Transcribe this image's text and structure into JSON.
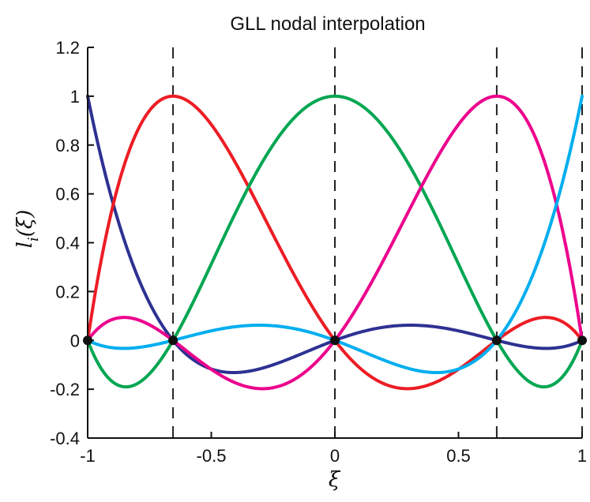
{
  "chart_data": {
    "type": "line",
    "title": "GLL nodal interpolation",
    "xlabel": "ξ",
    "ylabel_main": "l",
    "ylabel_sub": "i",
    "ylabel_rest": "(ξ)",
    "xlim": [
      -1,
      1
    ],
    "ylim": [
      -0.4,
      1.2
    ],
    "xticks": [
      -1,
      -0.5,
      0,
      0.5,
      1
    ],
    "xtick_labels": [
      "-1",
      "-0.5",
      "0",
      "0.5",
      "1"
    ],
    "yticks": [
      -0.4,
      -0.2,
      0,
      0.2,
      0.4,
      0.6,
      0.8,
      1,
      1.2
    ],
    "ytick_labels": [
      "-0.4",
      "-0.2",
      "0",
      "0.2",
      "0.4",
      "0.6",
      "0.8",
      "1",
      "1.2"
    ],
    "grid": false,
    "nodes": [
      -1,
      -0.6547,
      0,
      0.6547,
      1
    ],
    "series": [
      {
        "color": "#2e3192",
        "node_index": 0
      },
      {
        "color": "#ed1c24",
        "node_index": 1
      },
      {
        "color": "#00a651",
        "node_index": 2
      },
      {
        "color": "#ec008c",
        "node_index": 3
      },
      {
        "color": "#00aeef",
        "node_index": 4
      }
    ]
  }
}
